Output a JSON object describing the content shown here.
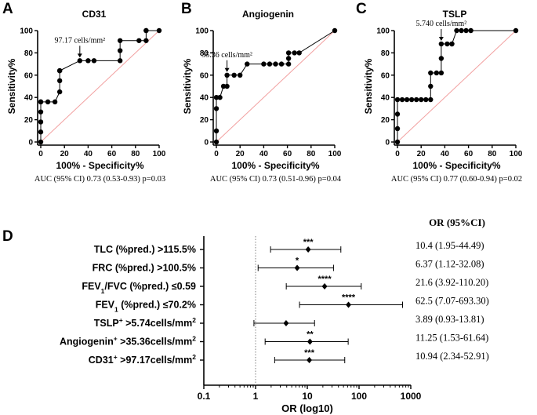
{
  "chart_data": [
    {
      "type": "line",
      "panel": "A",
      "title": "CD31",
      "xlabel": "100% - Specificity%",
      "ylabel": "Sensitivity%",
      "xlim": [
        0,
        100
      ],
      "ylim": [
        0,
        100
      ],
      "xticks": [
        0,
        20,
        40,
        60,
        80,
        100
      ],
      "yticks": [
        0,
        20,
        40,
        60,
        80,
        100
      ],
      "x": [
        0,
        0,
        0,
        0,
        0,
        0,
        6,
        12,
        16,
        16,
        16,
        16,
        33,
        40,
        45,
        67,
        67,
        67,
        83,
        89,
        89,
        89,
        100
      ],
      "y": [
        0,
        9,
        18,
        27,
        36,
        36,
        36,
        36,
        45,
        55,
        64,
        64,
        73,
        73,
        73,
        73,
        82,
        91,
        91,
        91,
        100,
        100,
        100
      ],
      "cutoff": {
        "label": "97.17 cells/mm²",
        "x": 33,
        "y": 73
      },
      "auc_text": "AUC (95% CI) 0.73 (0.53-0.93) p=0.03"
    },
    {
      "type": "line",
      "panel": "B",
      "title": "Angiogenin",
      "xlabel": "100% - Specificity%",
      "ylabel": "Sensitivity%",
      "xlim": [
        0,
        100
      ],
      "ylim": [
        0,
        100
      ],
      "xticks": [
        0,
        20,
        40,
        60,
        80,
        100
      ],
      "yticks": [
        0,
        20,
        40,
        60,
        80,
        100
      ],
      "x": [
        0,
        0,
        0,
        0,
        3,
        6,
        9,
        9,
        15,
        20,
        26,
        40,
        45,
        50,
        55,
        61,
        61,
        61,
        66,
        70,
        100
      ],
      "y": [
        0,
        10,
        30,
        40,
        40,
        50,
        50,
        60,
        60,
        60,
        70,
        70,
        70,
        70,
        70,
        70,
        75,
        80,
        80,
        80,
        100
      ],
      "cutoff": {
        "label": "35.36 cells/mm²",
        "x": 9,
        "y": 60
      },
      "auc_text": "AUC (95% CI) 0.73 (0.51-0.96) p=0.04"
    },
    {
      "type": "line",
      "panel": "C",
      "title": "TSLP",
      "xlabel": "100% - Specificity%",
      "ylabel": "Sensitivity%",
      "xlim": [
        0,
        100
      ],
      "ylim": [
        0,
        100
      ],
      "xticks": [
        0,
        20,
        40,
        60,
        80,
        100
      ],
      "yticks": [
        0,
        20,
        40,
        60,
        80,
        100
      ],
      "x": [
        0,
        0,
        0,
        0,
        4,
        8,
        12,
        16,
        20,
        24,
        28,
        28,
        28,
        33,
        37,
        37,
        37,
        42,
        46,
        46,
        50,
        54,
        58,
        62,
        100
      ],
      "y": [
        0,
        12,
        25,
        38,
        38,
        38,
        38,
        38,
        38,
        38,
        38,
        50,
        62,
        62,
        62,
        75,
        88,
        88,
        88,
        88,
        100,
        100,
        100,
        100,
        100
      ],
      "cutoff": {
        "label": "5.740 cells/mm²",
        "x": 37,
        "y": 88
      },
      "auc_text": "AUC (95% CI) 0.77 (0.60-0.94) p=0.02"
    },
    {
      "type": "forest",
      "panel": "D",
      "xlabel": "OR (log10)",
      "xscale": "log",
      "xlim": [
        0.1,
        1000
      ],
      "xticks": [
        "0.1",
        "1",
        "10",
        "100",
        "1000"
      ],
      "reference_line": 1,
      "or_header": "OR (95%CI)",
      "rows": [
        {
          "pre": "TLC (%pred.) >115.5%",
          "sub": "",
          "mid": "",
          "sup": "",
          "post": "",
          "or": 10.4,
          "lo": 1.95,
          "hi": 44.49,
          "stars": "***",
          "or_text": "10.4 (1.95-44.49)"
        },
        {
          "pre": "FRC (%pred.) >100.5%",
          "sub": "",
          "mid": "",
          "sup": "",
          "post": "",
          "or": 6.37,
          "lo": 1.12,
          "hi": 32.08,
          "stars": "*",
          "or_text": "6.37 (1.12-32.08)"
        },
        {
          "pre": "FEV",
          "sub": "1",
          "mid": "/FVC (%pred.) ≤0.59",
          "sup": "",
          "post": "",
          "or": 21.6,
          "lo": 3.92,
          "hi": 110.2,
          "stars": "****",
          "or_text": "21.6 (3.92-110.20)"
        },
        {
          "pre": "FEV",
          "sub": "1",
          "mid": " (%pred.) ≤70.2%",
          "sup": "",
          "post": "",
          "or": 62.5,
          "lo": 7.07,
          "hi": 693.3,
          "stars": "****",
          "or_text": "62.5 (7.07-693.30)"
        },
        {
          "pre": "TSLP",
          "sub": "",
          "mid": "",
          "sup": "+",
          "post": " >5.74cells/mm",
          "post_sup": "2",
          "or": 3.89,
          "lo": 0.93,
          "hi": 13.81,
          "stars": "",
          "or_text": "3.89 (0.93-13.81)"
        },
        {
          "pre": "Angiogenin",
          "sub": "",
          "mid": "",
          "sup": "+",
          "post": " >35.36cells/mm",
          "post_sup": "2",
          "or": 11.25,
          "lo": 1.53,
          "hi": 61.64,
          "stars": "**",
          "or_text": "11.25 (1.53-61.64)"
        },
        {
          "pre": "CD31",
          "sub": "",
          "mid": "",
          "sup": "+",
          "post": " >97.17cells/mm",
          "post_sup": "2",
          "or": 10.94,
          "lo": 2.34,
          "hi": 52.91,
          "stars": "***",
          "or_text": "10.94 (2.34-52.91)"
        }
      ]
    }
  ],
  "colors": {
    "line": "#000000",
    "diagonal": "#f2a0a0",
    "reference": "#808080"
  }
}
